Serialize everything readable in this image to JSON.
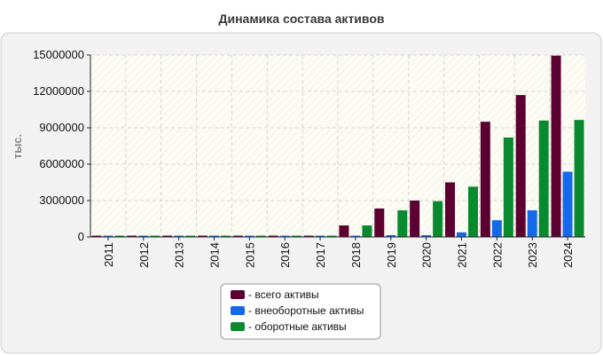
{
  "chart_data": {
    "type": "bar",
    "title": "Динамика состава активов",
    "ylabel": "тыс.",
    "xlabel": "",
    "categories": [
      "2011",
      "2012",
      "2013",
      "2014",
      "2015",
      "2016",
      "2017",
      "2018",
      "2019",
      "2020",
      "2021",
      "2022",
      "2023",
      "2024"
    ],
    "ylim": [
      0,
      15000000
    ],
    "yticks": [
      0,
      3000000,
      6000000,
      9000000,
      12000000,
      15000000
    ],
    "ytick_labels": [
      "0",
      "3000000",
      "6000000",
      "9000000",
      "12000000",
      "15000000"
    ],
    "grid": true,
    "legend_position": "bottom",
    "series": [
      {
        "name": "- всего активы",
        "color": "#5c0032",
        "values": [
          50000,
          50000,
          50000,
          50000,
          50000,
          50000,
          50000,
          950000,
          2350000,
          3000000,
          4500000,
          9500000,
          11700000,
          14950000
        ]
      },
      {
        "name": "- внеоборотные активы",
        "color": "#1469e8",
        "values": [
          20000,
          20000,
          20000,
          20000,
          20000,
          20000,
          20000,
          30000,
          150000,
          150000,
          380000,
          1380000,
          2200000,
          5380000
        ]
      },
      {
        "name": "- оборотные активы",
        "color": "#0a8a2e",
        "values": [
          30000,
          30000,
          30000,
          30000,
          30000,
          30000,
          30000,
          950000,
          2200000,
          2950000,
          4150000,
          8200000,
          9600000,
          9650000
        ]
      }
    ]
  }
}
